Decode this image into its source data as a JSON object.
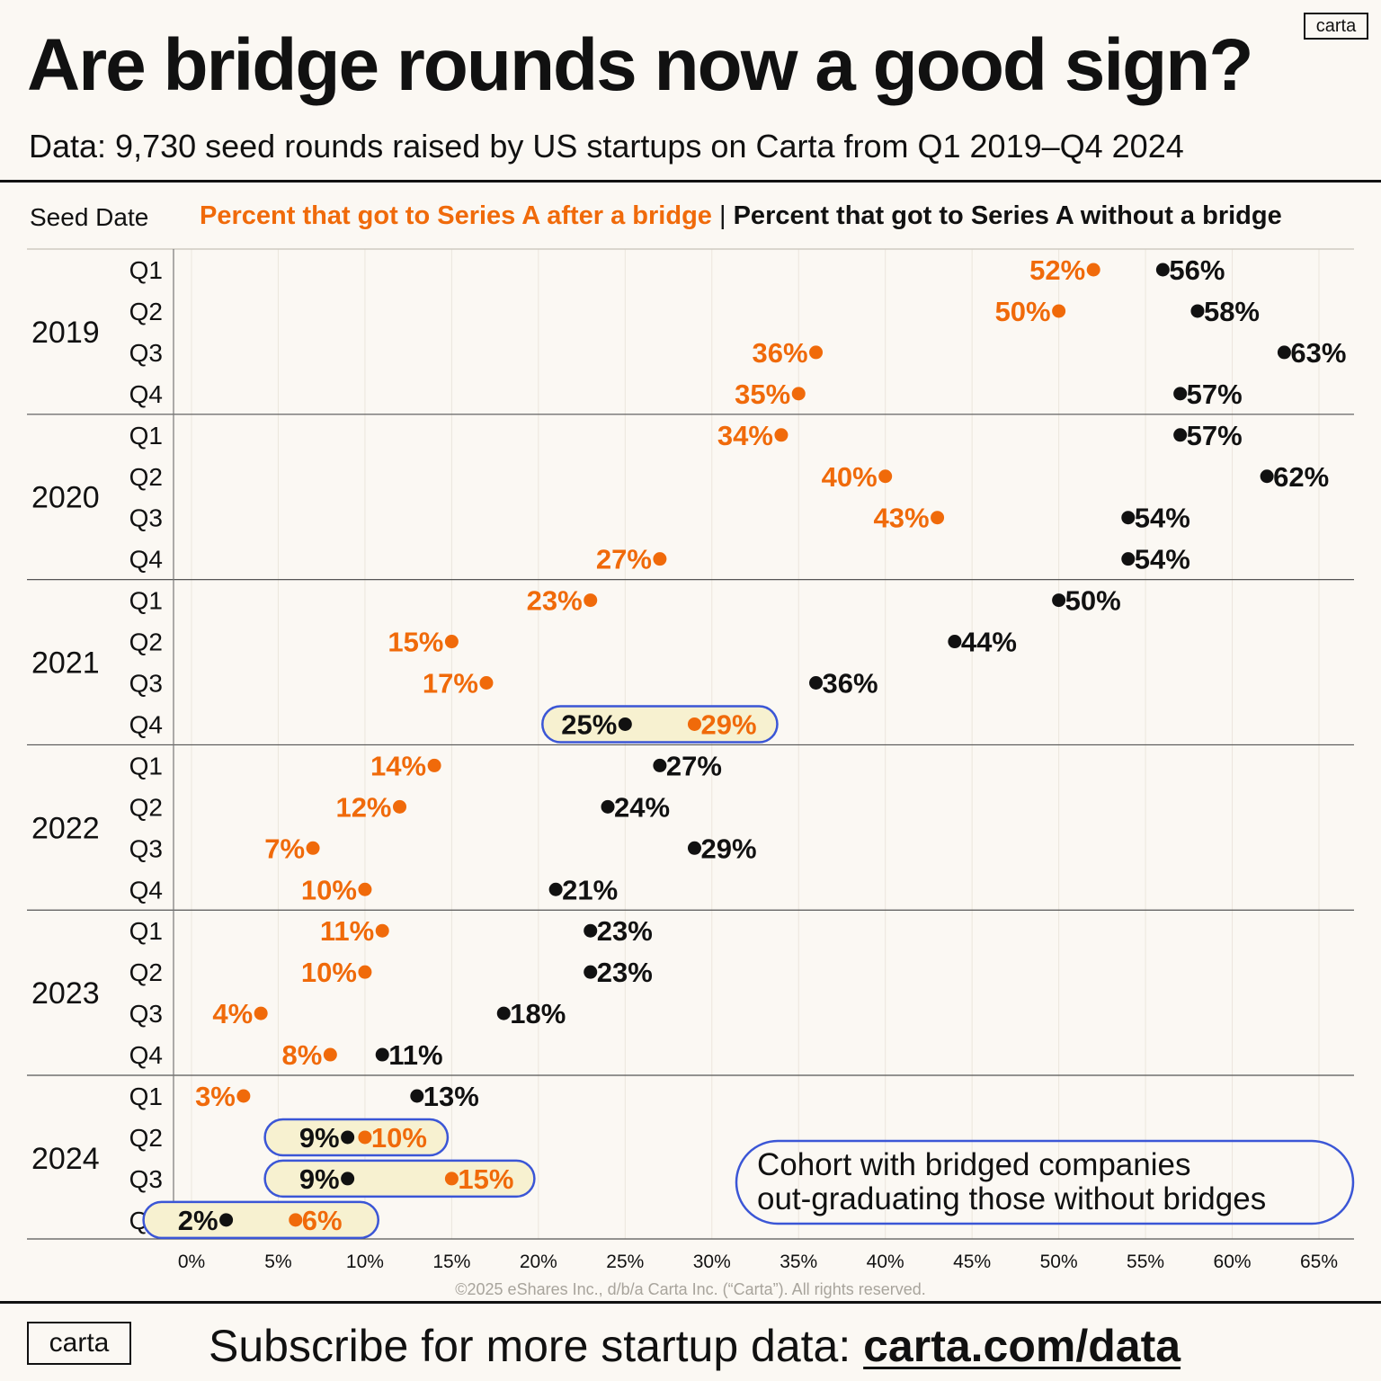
{
  "header": {
    "title": "Are bridge rounds now a good sign?",
    "subtitle": "Data: 9,730 seed rounds raised by US startups on Carta from Q1 2019–Q4 2024",
    "logo": "carta",
    "seed_date_label": "Seed Date",
    "legend_bridge": "Percent that got to Series A after a bridge",
    "legend_separator": "|",
    "legend_no_bridge": "Percent that got to Series A without a bridge"
  },
  "footer": {
    "logo": "carta",
    "subscribe_text": "Subscribe for more startup data: ",
    "link": "carta.com/data",
    "copyright": "©2025 eShares Inc., d/b/a Carta Inc. (“Carta”). All rights reserved."
  },
  "colors": {
    "bridge": "#f06a0a",
    "no_bridge": "#111111",
    "highlight_border": "#3b56d6",
    "highlight_fill": "#f7f1d0",
    "grid": "#ebe6dd",
    "background": "#fbf8f3"
  },
  "chart_data": {
    "type": "dumbbell",
    "orientation": "horizontal",
    "xlim": [
      0,
      65
    ],
    "x_ticks": [
      "0%",
      "5%",
      "10%",
      "15%",
      "20%",
      "25%",
      "30%",
      "35%",
      "40%",
      "45%",
      "50%",
      "55%",
      "60%",
      "65%"
    ],
    "grid": true,
    "series": [
      {
        "name": "Percent that got to Series A after a bridge"
      },
      {
        "name": "Percent that got to Series A without a bridge"
      }
    ],
    "annotation": {
      "lines": [
        "Cohort with bridged companies",
        "out-graduating those without bridges"
      ]
    },
    "groups": [
      {
        "year": "2019",
        "rows": [
          {
            "quarter": "Q1",
            "bridge": 52,
            "no_bridge": 56
          },
          {
            "quarter": "Q2",
            "bridge": 50,
            "no_bridge": 58
          },
          {
            "quarter": "Q3",
            "bridge": 36,
            "no_bridge": 63
          },
          {
            "quarter": "Q4",
            "bridge": 35,
            "no_bridge": 57
          }
        ]
      },
      {
        "year": "2020",
        "rows": [
          {
            "quarter": "Q1",
            "bridge": 34,
            "no_bridge": 57
          },
          {
            "quarter": "Q2",
            "bridge": 40,
            "no_bridge": 62
          },
          {
            "quarter": "Q3",
            "bridge": 43,
            "no_bridge": 54
          },
          {
            "quarter": "Q4",
            "bridge": 27,
            "no_bridge": 54
          }
        ]
      },
      {
        "year": "2021",
        "rows": [
          {
            "quarter": "Q1",
            "bridge": 23,
            "no_bridge": 50
          },
          {
            "quarter": "Q2",
            "bridge": 15,
            "no_bridge": 44
          },
          {
            "quarter": "Q3",
            "bridge": 17,
            "no_bridge": 36
          },
          {
            "quarter": "Q4",
            "bridge": 29,
            "no_bridge": 25,
            "highlight": true
          }
        ]
      },
      {
        "year": "2022",
        "rows": [
          {
            "quarter": "Q1",
            "bridge": 14,
            "no_bridge": 27
          },
          {
            "quarter": "Q2",
            "bridge": 12,
            "no_bridge": 24
          },
          {
            "quarter": "Q3",
            "bridge": 7,
            "no_bridge": 29
          },
          {
            "quarter": "Q4",
            "bridge": 10,
            "no_bridge": 21
          }
        ]
      },
      {
        "year": "2023",
        "rows": [
          {
            "quarter": "Q1",
            "bridge": 11,
            "no_bridge": 23
          },
          {
            "quarter": "Q2",
            "bridge": 10,
            "no_bridge": 23
          },
          {
            "quarter": "Q3",
            "bridge": 4,
            "no_bridge": 18
          },
          {
            "quarter": "Q4",
            "bridge": 8,
            "no_bridge": 11
          }
        ]
      },
      {
        "year": "2024",
        "rows": [
          {
            "quarter": "Q1",
            "bridge": 3,
            "no_bridge": 13
          },
          {
            "quarter": "Q2",
            "bridge": 10,
            "no_bridge": 9,
            "highlight": true
          },
          {
            "quarter": "Q3",
            "bridge": 15,
            "no_bridge": 9,
            "highlight": true
          },
          {
            "quarter": "Q4",
            "bridge": 6,
            "no_bridge": 2,
            "highlight": true
          }
        ]
      }
    ]
  }
}
